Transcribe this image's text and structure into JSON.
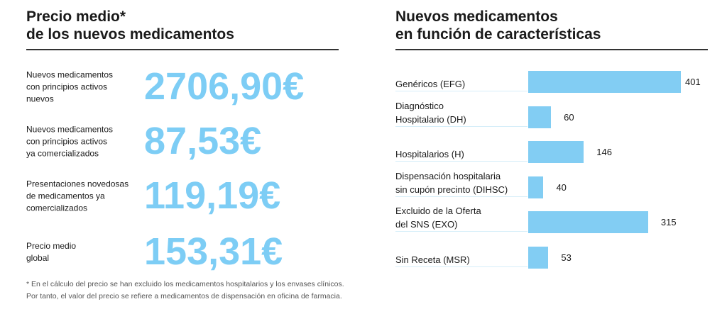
{
  "left_panel": {
    "title": "Precio medio*\nde los nuevos medicamentos",
    "rows": [
      {
        "label": "Nuevos medicamentos\ncon principios activos\nnuevos",
        "value": "2706,90€"
      },
      {
        "label": "Nuevos medicamentos\ncon principios activos\nya comercializados",
        "value": "87,53€"
      },
      {
        "label": "Presentaciones novedosas\nde medicamentos ya\ncomercializados",
        "value": "119,19€"
      },
      {
        "label": "Precio medio\nglobal",
        "value": "153,31€"
      }
    ],
    "footnote": "* En el cálculo del precio se han excluido los medicamentos hospitalarios y los envases clínicos.\nPor tanto, el valor del precio se refiere a medicamentos de dispensación en oficina de farmacia."
  },
  "chart_data": {
    "type": "bar",
    "orientation": "horizontal",
    "title": "Nuevos medicamentos\nen función de características",
    "categories": [
      "Genéricos (EFG)",
      "Diagnóstico\nHospitalario (DH)",
      "Hospitalarios (H)",
      "Dispensación hospitalaria\nsin cupón precinto (DIHSC)",
      "Excluido de la Oferta\ndel SNS (EXO)",
      "Sin Receta (MSR)"
    ],
    "values": [
      401,
      60,
      146,
      40,
      315,
      53
    ],
    "value_labels": [
      "401",
      "60",
      "146",
      "40",
      "315",
      "53"
    ],
    "xlim": [
      0,
      401
    ],
    "color": "#82cdf3"
  }
}
